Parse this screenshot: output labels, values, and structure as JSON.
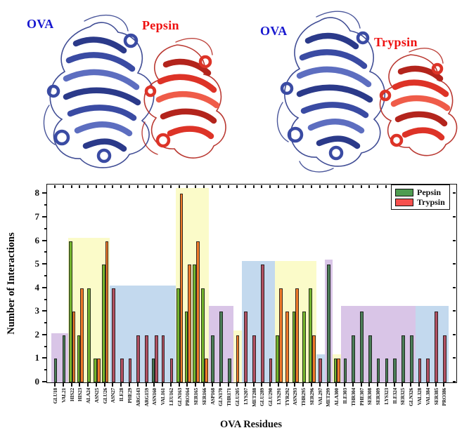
{
  "panels": {
    "left": {
      "ova_label": "OVA",
      "enzyme_label": "Pepsin"
    },
    "right": {
      "ova_label": "OVA",
      "enzyme_label": "Trypsin"
    },
    "colors": {
      "ova": "#3a4ba3",
      "enzyme": "#dd3327",
      "ova_text": "#1818cf",
      "enzyme_text": "#ee1010"
    }
  },
  "chart_data": {
    "type": "bar",
    "title": "",
    "xlabel": "OVA Residues",
    "ylabel": "Number of Interactions",
    "ylim": [
      0,
      8.4
    ],
    "yticks": [
      0,
      1,
      2,
      3,
      4,
      5,
      6,
      7,
      8
    ],
    "grid": false,
    "legend_position": "top-right",
    "legend": [
      {
        "name": "Pepsin",
        "color": "#4f9c51"
      },
      {
        "name": "Trypsin",
        "color": "#f6504d"
      }
    ],
    "categories": [
      "GLU18",
      "VAL21",
      "HIS22",
      "HIS23",
      "ALA24",
      "ASN25",
      "GLU26",
      "ASN27",
      "ILE28",
      "PHE29",
      "ARG143",
      "ARG159",
      "ASN160",
      "VAL161",
      "LEU162",
      "GLN163",
      "PRO164",
      "SER165",
      "SER166",
      "ASP168",
      "GLN170",
      "THR171",
      "GLU205",
      "LYS207",
      "MET288",
      "GLU289",
      "GLU290",
      "LYS291",
      "TYR292",
      "ASN293",
      "THR295",
      "SER296",
      "VAL297",
      "MET299",
      "ALA300",
      "ILE303",
      "THR304",
      "PHE307",
      "SER308",
      "SER309",
      "LYS323",
      "ILE324",
      "SER325",
      "GLN326",
      "VAL328",
      "VAL384",
      "SER385",
      "PRO386"
    ],
    "series": [
      {
        "name": "Pepsin",
        "values": [
          1,
          2,
          6,
          2,
          4,
          1,
          5,
          0,
          0,
          0,
          0,
          0,
          1,
          0,
          0,
          4,
          3,
          5,
          4,
          2,
          3,
          1,
          0,
          0,
          0,
          0,
          0,
          2,
          0,
          3,
          3,
          4,
          0,
          5,
          1,
          1,
          2,
          3,
          2,
          1,
          1,
          1,
          2,
          2,
          0,
          0,
          0,
          0
        ]
      },
      {
        "name": "Trypsin",
        "values": [
          0,
          0,
          3,
          4,
          0,
          1,
          6,
          4,
          1,
          1,
          2,
          2,
          2,
          2,
          1,
          8,
          5,
          6,
          1,
          0,
          0,
          0,
          2,
          3,
          2,
          5,
          1,
          4,
          3,
          4,
          0,
          2,
          1,
          0,
          1,
          0,
          0,
          0,
          0,
          0,
          0,
          0,
          0,
          0,
          1,
          1,
          3,
          2
        ]
      }
    ],
    "highlight_bands": [
      {
        "from": 0,
        "to": 1,
        "height": 2.1,
        "color": "purple"
      },
      {
        "from": 2,
        "to": 6,
        "height": 6.15,
        "color": "yellow"
      },
      {
        "from": 7,
        "to": 14,
        "height": 4.1,
        "color": "blue"
      },
      {
        "from": 15,
        "to": 18,
        "height": 8.25,
        "color": "yellow"
      },
      {
        "from": 19,
        "to": 21,
        "height": 3.25,
        "color": "purple"
      },
      {
        "from": 22,
        "to": 22,
        "height": 2.2,
        "color": "yellow"
      },
      {
        "from": 23,
        "to": 26,
        "height": 5.15,
        "color": "blue"
      },
      {
        "from": 27,
        "to": 31,
        "height": 5.15,
        "color": "yellow"
      },
      {
        "from": 32,
        "to": 32,
        "height": 1.2,
        "color": "blue"
      },
      {
        "from": 33,
        "to": 33,
        "height": 5.2,
        "color": "purple"
      },
      {
        "from": 34,
        "to": 34,
        "height": 1.2,
        "color": "yellow"
      },
      {
        "from": 35,
        "to": 43,
        "height": 3.25,
        "color": "purple"
      },
      {
        "from": 44,
        "to": 47,
        "height": 3.25,
        "color": "blue"
      }
    ],
    "band_colors": {
      "yellow": "#fbfbc9",
      "blue": "#c3d9ee",
      "purple": "#d9c5e7"
    },
    "bar_colors": {
      "none": {
        "pepsin": "#55a047",
        "trypsin": "#e04a45"
      },
      "yellow": {
        "pepsin": "#74b32d",
        "trypsin": "#ee7a2b"
      },
      "blue": {
        "pepsin": "#477a54",
        "trypsin": "#b05061"
      },
      "purple": {
        "pepsin": "#4b7d57",
        "trypsin": "#b05061"
      }
    }
  }
}
